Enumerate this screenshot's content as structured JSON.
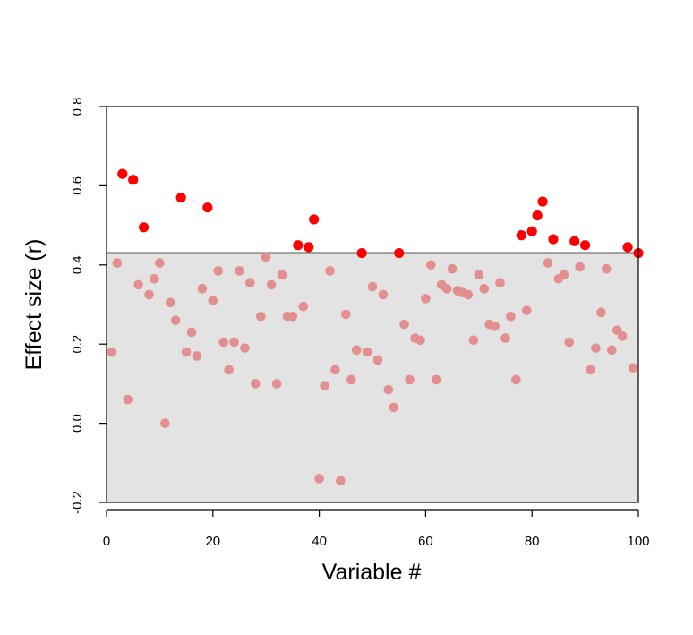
{
  "chart_data": {
    "type": "scatter",
    "xlabel": "Variable #",
    "ylabel": "Effect size (r)",
    "xlim": [
      0,
      100
    ],
    "ylim": [
      -0.2,
      0.8
    ],
    "x_ticks": [
      "0",
      "20",
      "40",
      "60",
      "80",
      "100"
    ],
    "y_ticks": [
      "-0.2",
      "0.0",
      "0.2",
      "0.4",
      "0.6",
      "0.8"
    ],
    "threshold": 0.43,
    "grid": false,
    "legend": "none",
    "colors": {
      "above_threshold": "#ff0000",
      "below_threshold": "#e38f8f",
      "shaded_region": "#e3e3e3",
      "threshold_line": "#555555"
    },
    "points": [
      {
        "x": 1,
        "y": 0.18
      },
      {
        "x": 2,
        "y": 0.405
      },
      {
        "x": 3,
        "y": 0.63
      },
      {
        "x": 4,
        "y": 0.06
      },
      {
        "x": 5,
        "y": 0.615
      },
      {
        "x": 6,
        "y": 0.35
      },
      {
        "x": 7,
        "y": 0.495
      },
      {
        "x": 8,
        "y": 0.325
      },
      {
        "x": 9,
        "y": 0.365
      },
      {
        "x": 10,
        "y": 0.405
      },
      {
        "x": 11,
        "y": 0.0
      },
      {
        "x": 12,
        "y": 0.305
      },
      {
        "x": 13,
        "y": 0.26
      },
      {
        "x": 14,
        "y": 0.57
      },
      {
        "x": 15,
        "y": 0.18
      },
      {
        "x": 16,
        "y": 0.23
      },
      {
        "x": 17,
        "y": 0.17
      },
      {
        "x": 18,
        "y": 0.34
      },
      {
        "x": 19,
        "y": 0.545
      },
      {
        "x": 20,
        "y": 0.31
      },
      {
        "x": 21,
        "y": 0.385
      },
      {
        "x": 22,
        "y": 0.205
      },
      {
        "x": 23,
        "y": 0.135
      },
      {
        "x": 24,
        "y": 0.205
      },
      {
        "x": 25,
        "y": 0.385
      },
      {
        "x": 26,
        "y": 0.19
      },
      {
        "x": 27,
        "y": 0.355
      },
      {
        "x": 28,
        "y": 0.1
      },
      {
        "x": 29,
        "y": 0.27
      },
      {
        "x": 30,
        "y": 0.42
      },
      {
        "x": 31,
        "y": 0.35
      },
      {
        "x": 32,
        "y": 0.1
      },
      {
        "x": 33,
        "y": 0.375
      },
      {
        "x": 34,
        "y": 0.27
      },
      {
        "x": 35,
        "y": 0.27
      },
      {
        "x": 36,
        "y": 0.45
      },
      {
        "x": 37,
        "y": 0.295
      },
      {
        "x": 38,
        "y": 0.445
      },
      {
        "x": 39,
        "y": 0.515
      },
      {
        "x": 40,
        "y": -0.14
      },
      {
        "x": 41,
        "y": 0.095
      },
      {
        "x": 42,
        "y": 0.385
      },
      {
        "x": 43,
        "y": 0.135
      },
      {
        "x": 44,
        "y": -0.145
      },
      {
        "x": 45,
        "y": 0.275
      },
      {
        "x": 46,
        "y": 0.11
      },
      {
        "x": 47,
        "y": 0.185
      },
      {
        "x": 48,
        "y": 0.43
      },
      {
        "x": 49,
        "y": 0.18
      },
      {
        "x": 50,
        "y": 0.345
      },
      {
        "x": 51,
        "y": 0.16
      },
      {
        "x": 52,
        "y": 0.325
      },
      {
        "x": 53,
        "y": 0.085
      },
      {
        "x": 54,
        "y": 0.04
      },
      {
        "x": 55,
        "y": 0.43
      },
      {
        "x": 56,
        "y": 0.25
      },
      {
        "x": 57,
        "y": 0.11
      },
      {
        "x": 58,
        "y": 0.215
      },
      {
        "x": 59,
        "y": 0.21
      },
      {
        "x": 60,
        "y": 0.315
      },
      {
        "x": 61,
        "y": 0.4
      },
      {
        "x": 62,
        "y": 0.11
      },
      {
        "x": 63,
        "y": 0.35
      },
      {
        "x": 64,
        "y": 0.34
      },
      {
        "x": 65,
        "y": 0.39
      },
      {
        "x": 66,
        "y": 0.335
      },
      {
        "x": 67,
        "y": 0.33
      },
      {
        "x": 68,
        "y": 0.325
      },
      {
        "x": 69,
        "y": 0.21
      },
      {
        "x": 70,
        "y": 0.375
      },
      {
        "x": 71,
        "y": 0.34
      },
      {
        "x": 72,
        "y": 0.25
      },
      {
        "x": 73,
        "y": 0.245
      },
      {
        "x": 74,
        "y": 0.355
      },
      {
        "x": 75,
        "y": 0.215
      },
      {
        "x": 76,
        "y": 0.27
      },
      {
        "x": 77,
        "y": 0.11
      },
      {
        "x": 78,
        "y": 0.475
      },
      {
        "x": 79,
        "y": 0.285
      },
      {
        "x": 80,
        "y": 0.485
      },
      {
        "x": 81,
        "y": 0.525
      },
      {
        "x": 82,
        "y": 0.56
      },
      {
        "x": 83,
        "y": 0.405
      },
      {
        "x": 84,
        "y": 0.465
      },
      {
        "x": 85,
        "y": 0.365
      },
      {
        "x": 86,
        "y": 0.375
      },
      {
        "x": 87,
        "y": 0.205
      },
      {
        "x": 88,
        "y": 0.46
      },
      {
        "x": 89,
        "y": 0.395
      },
      {
        "x": 90,
        "y": 0.45
      },
      {
        "x": 91,
        "y": 0.135
      },
      {
        "x": 92,
        "y": 0.19
      },
      {
        "x": 93,
        "y": 0.28
      },
      {
        "x": 94,
        "y": 0.39
      },
      {
        "x": 95,
        "y": 0.185
      },
      {
        "x": 96,
        "y": 0.235
      },
      {
        "x": 97,
        "y": 0.22
      },
      {
        "x": 98,
        "y": 0.445
      },
      {
        "x": 99,
        "y": 0.14
      },
      {
        "x": 100,
        "y": 0.43
      }
    ]
  }
}
